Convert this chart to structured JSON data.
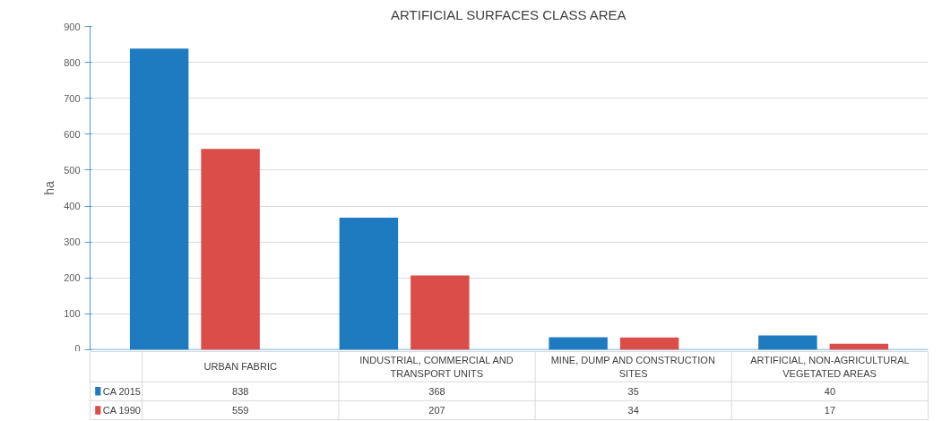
{
  "chart_data": {
    "type": "bar",
    "title": "ARTIFICIAL SURFACES CLASS AREA",
    "ylabel": "ha",
    "categories": [
      "URBAN FABRIC",
      "INDUSTRIAL, COMMERCIAL AND TRANSPORT UNITS",
      "MINE, DUMP AND CONSTRUCTION SITES",
      "ARTIFICIAL, NON-AGRICULTURAL VEGETATED AREAS"
    ],
    "series": [
      {
        "name": "CA 2015",
        "color": "#1f7bbf",
        "values": [
          838,
          368,
          35,
          40
        ]
      },
      {
        "name": "CA 1990",
        "color": "#db4d48",
        "values": [
          559,
          207,
          34,
          17
        ]
      }
    ],
    "ylim": [
      0,
      900
    ],
    "yticks": [
      0,
      100,
      200,
      300,
      400,
      500,
      600,
      700,
      800,
      900
    ],
    "grid": "y",
    "legend": "bottom left",
    "data_labels": true
  }
}
